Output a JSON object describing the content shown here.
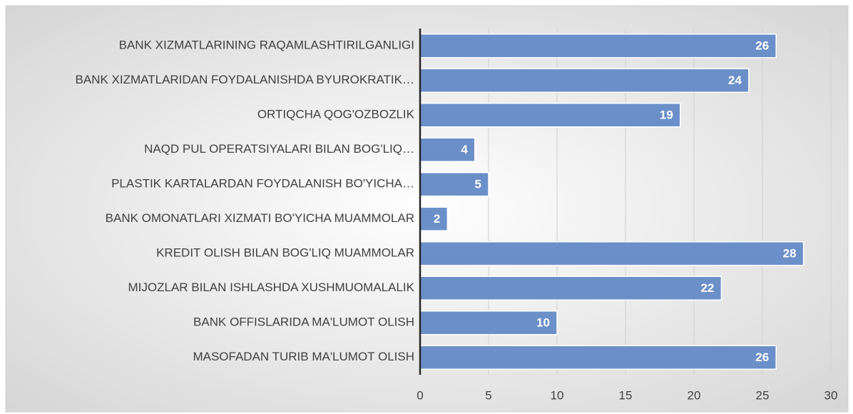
{
  "chart_data": {
    "type": "barh",
    "categories": [
      "BANK XIZMATLARINING RAQAMLASHTIRILGANLIGI",
      "BANK XIZMATLARIDAN FOYDALANISHDA BYUROKRATIK…",
      "ORTIQCHA QOG'OZBOZLIK",
      "NAQD PUL OPERATSIYALARI BILAN BOG'LIQ…",
      "PLASTIK KARTALARDAN FOYDALANISH BO'YICHA…",
      "BANK OMONATLARI XIZMATI BO'YICHA MUAMMOLAR",
      "KREDIT OLISH BILAN BOG'LIQ MUAMMOLAR",
      "MIJOZLAR BILAN ISHLASHDA XUSHMUOMALALIK",
      "BANK OFFISLARIDA MA'LUMOT OLISH",
      "MASOFADAN TURIB MA'LUMOT OLISH"
    ],
    "values": [
      26,
      24,
      19,
      4,
      5,
      2,
      28,
      22,
      10,
      26
    ],
    "color": "#6b8fc8",
    "xlim": [
      0,
      30
    ],
    "xticks": [
      0,
      5,
      10,
      15,
      20,
      25,
      30
    ],
    "grid": true
  }
}
